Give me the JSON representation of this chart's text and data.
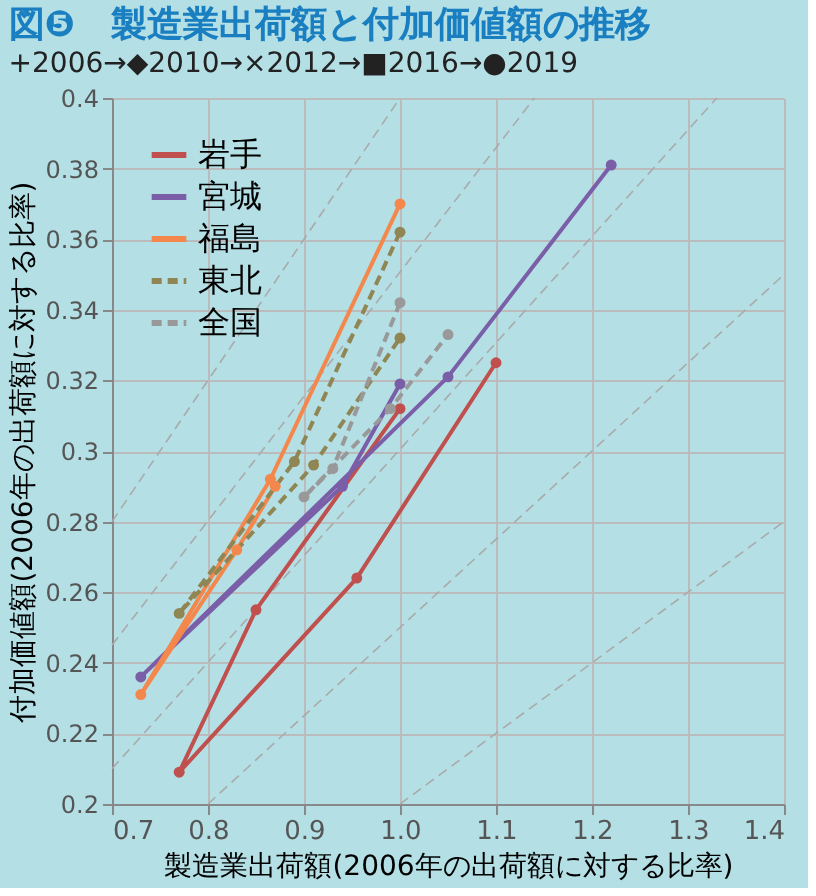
{
  "chart_data": {
    "type": "line",
    "title": "図❺　製造業出荷額と付加価値額の推移",
    "subtitle": "+2006→◆2010→×2012→■2016→●2019",
    "xlabel": "製造業出荷額(2006年の出荷額に対する比率)",
    "ylabel": "付加価値額(2006年の出荷額に対する比率)",
    "xlim": [
      0.7,
      1.4
    ],
    "xticks": [
      0.7,
      0.8,
      0.9,
      {
        "value": 1.0,
        "label": "1.0"
      },
      1.1,
      1.2,
      1.3,
      1.4
    ],
    "ylim": [
      0.2,
      0.4
    ],
    "yticks": [
      0.2,
      0.22,
      0.24,
      0.26,
      0.28,
      0.3,
      0.32,
      0.34,
      0.36,
      0.38,
      0.4
    ],
    "grid": true,
    "legend": "top left",
    "marker": "circle",
    "series": [
      {
        "type": "line",
        "color": "#aaaaaa",
        "line_style": "dashed",
        "marker": "none",
        "x": [
          1.0,
          1.4
        ],
        "values": [
          0.2,
          0.28
        ]
      },
      {
        "type": "line",
        "color": "#aaaaaa",
        "line_style": "dashed",
        "marker": "none",
        "x": [
          0.8,
          1.4
        ],
        "values": [
          0.2,
          0.35
        ]
      },
      {
        "type": "line",
        "color": "#aaaaaa",
        "line_style": "dashed",
        "marker": "none",
        "x": [
          0.7,
          1.33
        ],
        "values": [
          0.21,
          0.4
        ]
      },
      {
        "type": "line",
        "color": "#aaaaaa",
        "line_style": "dashed",
        "marker": "none",
        "x": [
          0.7,
          1.14
        ],
        "values": [
          0.245,
          0.4
        ]
      },
      {
        "type": "line",
        "color": "#aaaaaa",
        "line_style": "dashed",
        "marker": "none",
        "x": [
          0.7,
          1.0
        ],
        "values": [
          0.28,
          0.4
        ]
      },
      {
        "name": "岩手",
        "color": "#c0504d",
        "line_style": "solid",
        "x": [
          1.0,
          0.85,
          0.77,
          0.955,
          1.1
        ],
        "values": [
          0.312,
          0.255,
          0.209,
          0.264,
          0.325
        ]
      },
      {
        "name": "宮城",
        "color": "#7a5ea8",
        "line_style": "solid",
        "x": [
          1.0,
          0.94,
          0.73,
          1.05,
          1.22
        ],
        "values": [
          0.319,
          0.29,
          0.236,
          0.321,
          0.381
        ]
      },
      {
        "name": "福島",
        "color": "#f4874b",
        "line_style": "solid",
        "x": [
          1.0,
          0.865,
          0.73,
          0.83,
          0.87
        ],
        "values": [
          0.37,
          0.292,
          0.231,
          0.272,
          0.29
        ]
      },
      {
        "name": "東北",
        "color": "#8f8653",
        "line_style": "dashed",
        "x": [
          1.0,
          0.89,
          0.77,
          0.91,
          1.0
        ],
        "values": [
          0.362,
          0.297,
          0.254,
          0.296,
          0.332
        ]
      },
      {
        "name": "全国",
        "color": "#999999",
        "line_style": "dashed",
        "x": [
          1.0,
          0.93,
          0.9,
          0.99,
          1.05
        ],
        "values": [
          0.342,
          0.295,
          0.287,
          0.312,
          0.333
        ]
      }
    ]
  }
}
